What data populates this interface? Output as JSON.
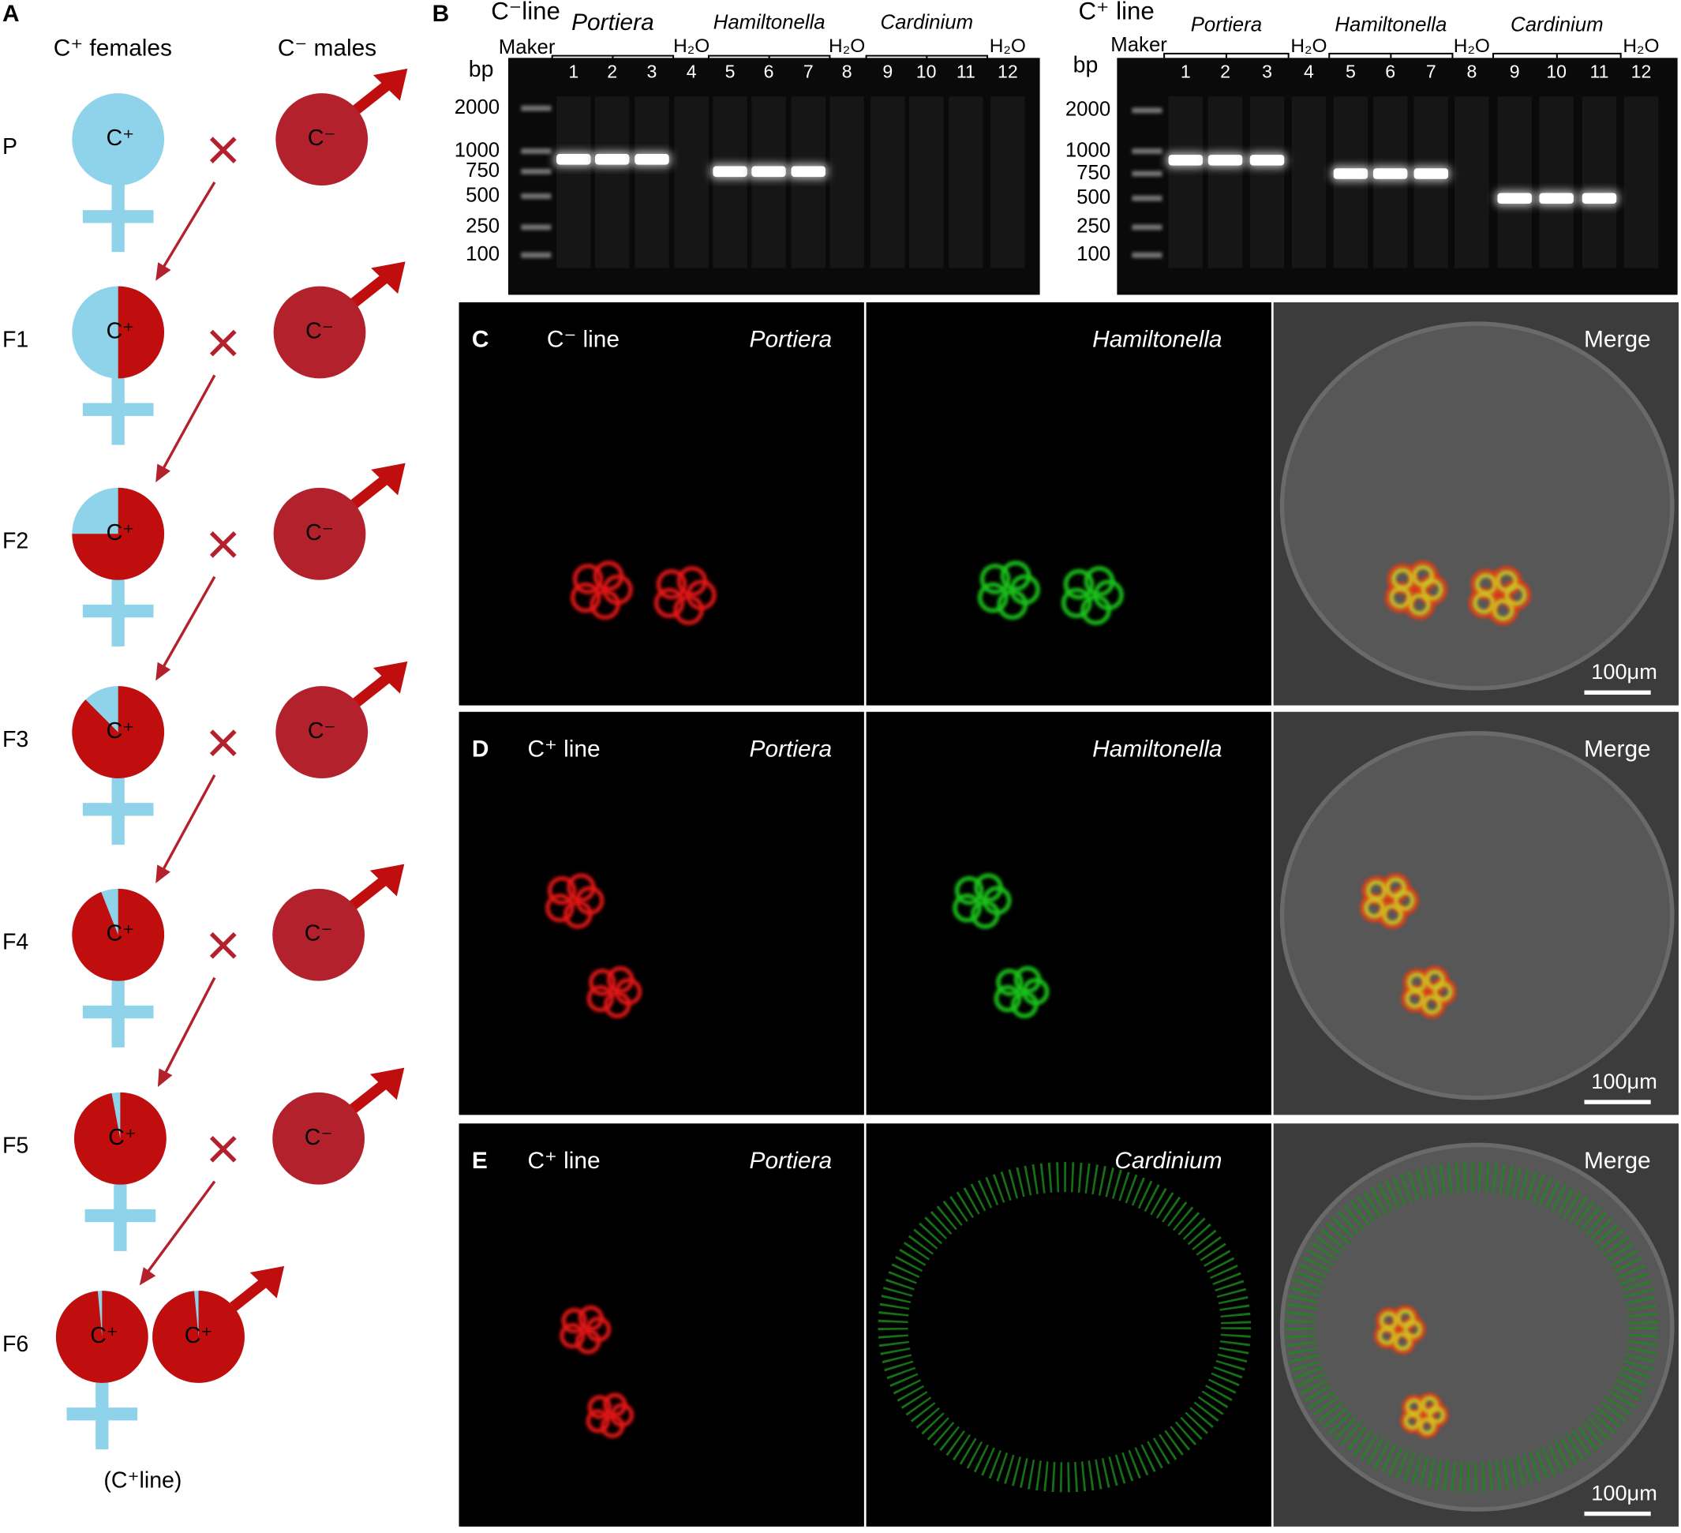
{
  "panel_a": {
    "label": "A",
    "female_header": "C⁺ females",
    "male_header": "C⁻ males",
    "generations": [
      {
        "name": "P",
        "female": "C⁺",
        "male": "C⁻",
        "red_share": 0
      },
      {
        "name": "F1",
        "female": "C⁺",
        "male": "C⁻",
        "red_share": 0.5
      },
      {
        "name": "F2",
        "female": "C⁺",
        "male": "C⁻",
        "red_share": 0.75
      },
      {
        "name": "F3",
        "female": "C⁺",
        "male": "C⁻",
        "red_share": 0.875
      },
      {
        "name": "F4",
        "female": "C⁺",
        "male": "C⁻",
        "red_share": 0.94
      },
      {
        "name": "F5",
        "female": "C⁺",
        "male": "C⁻",
        "red_share": 0.97
      },
      {
        "name": "F6",
        "female": "C⁺",
        "male": "C⁺",
        "red_share": 0.985,
        "male_red_share": 0.985
      }
    ],
    "footnote": "(C⁺line)"
  },
  "panel_b": {
    "label": "B",
    "ladder": "Maker",
    "unit": "bp",
    "ladder_sizes": [
      2000,
      1000,
      750,
      500,
      250,
      100
    ],
    "water": "H₂O",
    "lanes": [
      1,
      2,
      3,
      4,
      5,
      6,
      7,
      8,
      9,
      10,
      11,
      12
    ],
    "gels": [
      {
        "title": "C⁻line",
        "groups": [
          "Portiera",
          "Hamiltonella",
          "Cardinium"
        ],
        "bands": [
          900,
          900,
          900,
          null,
          750,
          750,
          750,
          null,
          null,
          null,
          null,
          null
        ]
      },
      {
        "title": "C⁺ line",
        "groups": [
          "Portiera",
          "Hamiltonella",
          "Cardinium"
        ],
        "bands": [
          900,
          900,
          900,
          null,
          750,
          750,
          750,
          null,
          500,
          500,
          500,
          null
        ]
      }
    ]
  },
  "panels": [
    {
      "label": "C",
      "line": "C⁻ line",
      "channels": [
        "Portiera",
        "Hamiltonella"
      ],
      "merge": "Merge",
      "scale": "100μm"
    },
    {
      "label": "D",
      "line": "C⁺ line",
      "channels": [
        "Portiera",
        "Hamiltonella"
      ],
      "merge": "Merge",
      "scale": "100μm"
    },
    {
      "label": "E",
      "line": "C⁺ line",
      "channels": [
        "Portiera",
        "Cardinium"
      ],
      "merge": "Merge",
      "scale": "100μm"
    }
  ]
}
